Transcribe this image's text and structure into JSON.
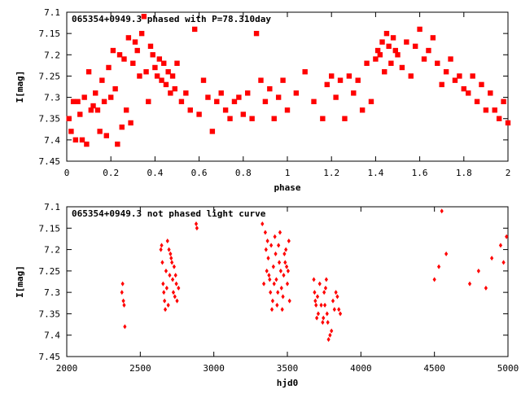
{
  "chart_data": [
    {
      "type": "scatter",
      "title": "065354+0949.3 phased with P=78.310day",
      "xlabel": "phase",
      "ylabel": "I[mag]",
      "xlim": [
        0,
        2
      ],
      "ylim": [
        7.1,
        7.45
      ],
      "y_inverted": true,
      "grid": false,
      "marker_color": "#ff0000",
      "xticks": [
        "0",
        "0.2",
        "0.4",
        "0.6",
        "0.8",
        "1",
        "1.2",
        "1.4",
        "1.6",
        "1.8",
        "2"
      ],
      "xtick_values": [
        0,
        0.2,
        0.4,
        0.6,
        0.8,
        1.0,
        1.2,
        1.4,
        1.6,
        1.8,
        2.0
      ],
      "yticks": [
        "7.1",
        "7.15",
        "7.2",
        "7.25",
        "7.3",
        "7.35",
        "7.4",
        "7.45"
      ],
      "ytick_values": [
        7.1,
        7.15,
        7.2,
        7.25,
        7.3,
        7.35,
        7.4,
        7.45
      ],
      "series": [
        {
          "x": [
            0.01,
            0.02,
            0.03,
            0.04,
            0.05,
            0.06,
            0.07,
            0.08,
            0.09,
            0.1,
            0.11,
            0.12,
            0.13,
            0.14,
            0.15,
            0.16,
            0.17,
            0.18,
            0.19,
            0.2,
            0.21,
            0.22,
            0.23,
            0.24,
            0.25,
            0.26,
            0.27,
            0.28,
            0.29,
            0.3,
            0.31,
            0.32,
            0.33,
            0.34,
            0.35,
            0.36,
            0.37,
            0.38,
            0.39,
            0.4,
            0.41,
            0.42,
            0.43,
            0.44,
            0.45,
            0.46,
            0.47,
            0.48,
            0.49,
            0.5,
            0.52,
            0.54,
            0.56,
            0.58,
            0.6,
            0.62,
            0.64,
            0.66,
            0.68,
            0.7,
            0.72,
            0.74,
            0.76,
            0.78,
            0.8,
            0.82,
            0.84,
            0.86,
            0.88,
            0.9,
            0.92,
            0.94,
            0.96,
            0.98,
            1.0,
            1.04,
            1.08,
            1.12,
            1.16,
            1.18,
            1.2,
            1.22,
            1.24,
            1.26,
            1.28,
            1.3,
            1.32,
            1.34,
            1.36,
            1.38,
            1.4,
            1.41,
            1.42,
            1.43,
            1.44,
            1.45,
            1.46,
            1.47,
            1.48,
            1.49,
            1.5,
            1.52,
            1.54,
            1.56,
            1.58,
            1.6,
            1.62,
            1.64,
            1.66,
            1.68,
            1.7,
            1.72,
            1.74,
            1.76,
            1.78,
            1.8,
            1.82,
            1.84,
            1.86,
            1.88,
            1.9,
            1.92,
            1.94,
            1.96,
            1.98,
            2.0
          ],
          "y": [
            7.35,
            7.38,
            7.31,
            7.4,
            7.31,
            7.34,
            7.4,
            7.3,
            7.41,
            7.24,
            7.33,
            7.32,
            7.29,
            7.33,
            7.38,
            7.26,
            7.31,
            7.39,
            7.23,
            7.3,
            7.19,
            7.28,
            7.41,
            7.2,
            7.37,
            7.21,
            7.33,
            7.16,
            7.36,
            7.22,
            7.17,
            7.19,
            7.25,
            7.15,
            7.11,
            7.24,
            7.31,
            7.18,
            7.2,
            7.23,
            7.25,
            7.21,
            7.26,
            7.22,
            7.27,
            7.24,
            7.29,
            7.25,
            7.28,
            7.22,
            7.31,
            7.29,
            7.33,
            7.14,
            7.34,
            7.26,
            7.3,
            7.38,
            7.31,
            7.29,
            7.33,
            7.35,
            7.31,
            7.3,
            7.34,
            7.29,
            7.35,
            7.15,
            7.26,
            7.31,
            7.28,
            7.35,
            7.3,
            7.26,
            7.33,
            7.29,
            7.24,
            7.31,
            7.35,
            7.27,
            7.25,
            7.3,
            7.26,
            7.35,
            7.25,
            7.29,
            7.26,
            7.33,
            7.22,
            7.31,
            7.21,
            7.19,
            7.2,
            7.17,
            7.24,
            7.15,
            7.18,
            7.22,
            7.16,
            7.19,
            7.2,
            7.23,
            7.17,
            7.25,
            7.18,
            7.14,
            7.21,
            7.19,
            7.16,
            7.22,
            7.27,
            7.24,
            7.21,
            7.26,
            7.25,
            7.28,
            7.29,
            7.25,
            7.31,
            7.27,
            7.33,
            7.29,
            7.33,
            7.35,
            7.31,
            7.36
          ],
          "marker": "filled-square"
        }
      ]
    },
    {
      "type": "scatter",
      "title": "065354+0949.3 not phased light curve",
      "xlabel": "hjd0",
      "ylabel": "I[mag]",
      "xlim": [
        2000,
        5000
      ],
      "ylim": [
        7.1,
        7.45
      ],
      "y_inverted": true,
      "grid": false,
      "marker_color": "#ff0000",
      "xticks": [
        "2000",
        "2500",
        "3000",
        "3500",
        "4000",
        "4500",
        "5000"
      ],
      "xtick_values": [
        2000,
        2500,
        3000,
        3500,
        4000,
        4500,
        5000
      ],
      "yticks": [
        "7.1",
        "7.15",
        "7.2",
        "7.25",
        "7.3",
        "7.35",
        "7.4",
        "7.45"
      ],
      "ytick_values": [
        7.1,
        7.15,
        7.2,
        7.25,
        7.3,
        7.35,
        7.4,
        7.45
      ],
      "series": [
        {
          "x": [
            2375,
            2380,
            2385,
            2390,
            2395,
            2640,
            2645,
            2650,
            2655,
            2660,
            2665,
            2670,
            2675,
            2680,
            2685,
            2690,
            2695,
            2700,
            2705,
            2710,
            2715,
            2720,
            2725,
            2730,
            2735,
            2740,
            2745,
            2750,
            2760,
            2880,
            2885,
            3330,
            3340,
            3350,
            3355,
            3360,
            3365,
            3370,
            3375,
            3380,
            3385,
            3390,
            3395,
            3400,
            3405,
            3410,
            3415,
            3420,
            3425,
            3430,
            3435,
            3440,
            3445,
            3450,
            3455,
            3460,
            3465,
            3470,
            3475,
            3480,
            3485,
            3490,
            3495,
            3500,
            3505,
            3510,
            3515,
            3680,
            3685,
            3690,
            3695,
            3700,
            3705,
            3710,
            3720,
            3730,
            3740,
            3745,
            3750,
            3755,
            3760,
            3765,
            3770,
            3775,
            3780,
            3790,
            3800,
            3810,
            3820,
            3830,
            3840,
            3850,
            3860,
            4500,
            4530,
            4550,
            4580,
            4740,
            4800,
            4850,
            4890,
            4950,
            4970,
            4990
          ],
          "y": [
            7.3,
            7.28,
            7.32,
            7.33,
            7.38,
            7.2,
            7.19,
            7.23,
            7.28,
            7.3,
            7.32,
            7.34,
            7.25,
            7.29,
            7.18,
            7.33,
            7.2,
            7.26,
            7.21,
            7.22,
            7.23,
            7.27,
            7.3,
            7.24,
            7.31,
            7.26,
            7.28,
            7.32,
            7.29,
            7.14,
            7.15,
            7.14,
            7.28,
            7.16,
            7.2,
            7.25,
            7.18,
            7.22,
            7.26,
            7.27,
            7.3,
            7.19,
            7.34,
            7.32,
            7.24,
            7.28,
            7.17,
            7.21,
            7.27,
            7.33,
            7.3,
            7.19,
            7.23,
            7.16,
            7.25,
            7.29,
            7.34,
            7.31,
            7.26,
            7.21,
            7.23,
            7.2,
            7.24,
            7.28,
            7.25,
            7.18,
            7.32,
            7.27,
            7.3,
            7.32,
            7.33,
            7.36,
            7.31,
            7.35,
            7.28,
            7.33,
            7.37,
            7.36,
            7.3,
            7.33,
            7.29,
            7.27,
            7.35,
            7.37,
            7.41,
            7.4,
            7.39,
            7.32,
            7.34,
            7.3,
            7.31,
            7.34,
            7.35,
            7.27,
            7.24,
            7.11,
            7.21,
            7.28,
            7.25,
            7.29,
            7.22,
            7.19,
            7.23,
            7.17
          ],
          "marker": "diamond"
        }
      ]
    }
  ]
}
